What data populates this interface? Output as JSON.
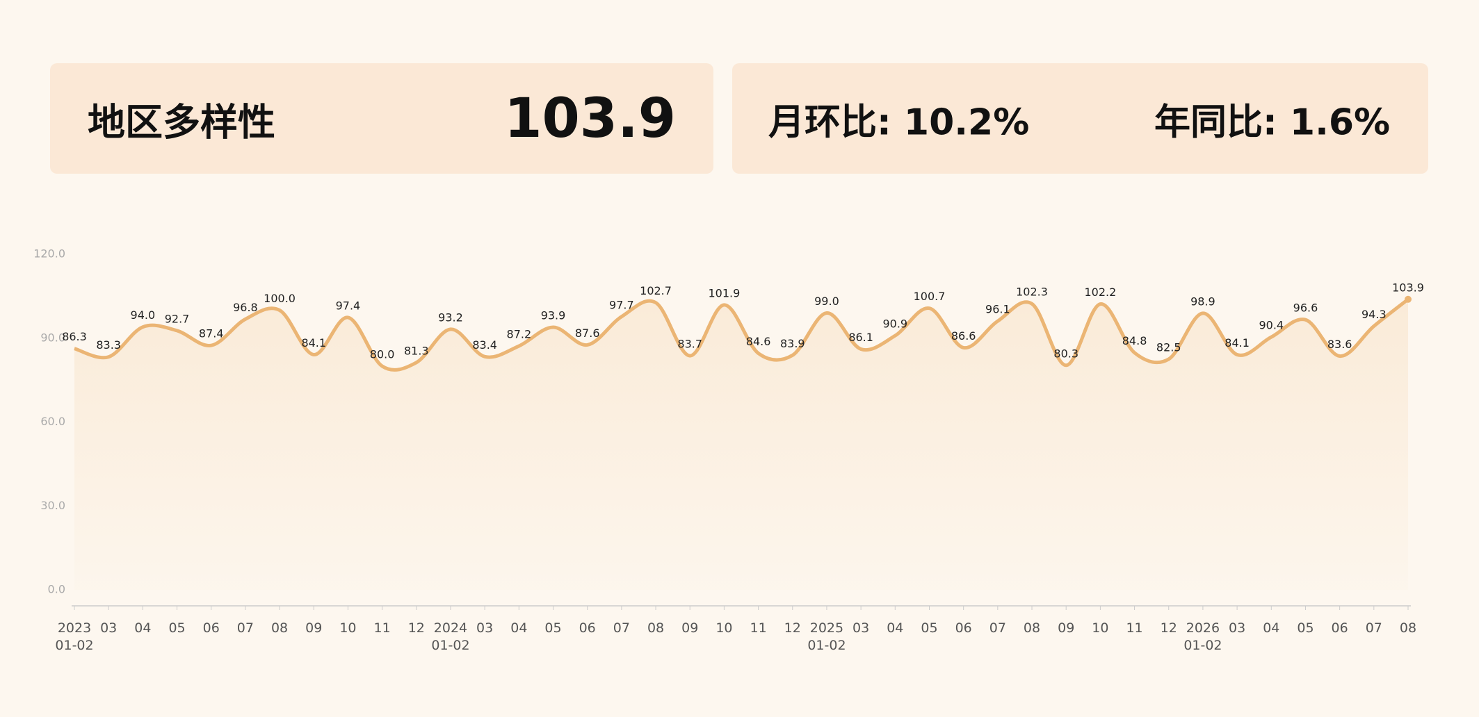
{
  "header": {
    "title": "地区多样性",
    "value": "103.9",
    "mom": "月环比: 10.2%",
    "yoy": "年同比: 1.6%"
  },
  "chart_data": {
    "type": "line",
    "categories": [
      "2023\n01-02",
      "03",
      "04",
      "05",
      "06",
      "07",
      "08",
      "09",
      "10",
      "11",
      "12",
      "2024\n01-02",
      "03",
      "04",
      "05",
      "06",
      "07",
      "08",
      "09",
      "10",
      "11",
      "12",
      "2025\n01-02",
      "03",
      "04",
      "05",
      "06",
      "07",
      "08",
      "09",
      "10",
      "11",
      "12",
      "2026\n01-02",
      "03",
      "04",
      "05",
      "06",
      "07",
      "08"
    ],
    "series": [
      {
        "color": "#ebb574",
        "values": [
          86.3,
          83.3,
          94.0,
          92.7,
          87.4,
          96.8,
          100.0,
          84.1,
          97.4,
          80.0,
          81.3,
          93.2,
          83.4,
          87.2,
          93.9,
          87.6,
          97.7,
          102.7,
          83.7,
          101.9,
          84.6,
          83.9,
          99.0,
          86.1,
          90.9,
          100.7,
          86.6,
          96.1,
          102.3,
          80.3,
          102.2,
          84.8,
          82.5,
          98.9,
          84.1,
          90.4,
          96.6,
          83.6,
          94.3,
          103.9
        ],
        "value_labels": [
          "86.3",
          "83.3",
          "94.0",
          "92.7",
          "87.4",
          "96.8",
          "100.0",
          "84.1",
          "97.4",
          "80.0",
          "81.3",
          "93.2",
          "83.4",
          "87.2",
          "93.9",
          "87.6",
          "97.7",
          "102.7",
          "83.7",
          "101.9",
          "84.6",
          "83.9",
          "99.0",
          "86.1",
          "90.9",
          "100.7",
          "86.6",
          "96.1",
          "102.3",
          "80.3",
          "102.2",
          "84.8",
          "82.5",
          "98.9",
          "84.1",
          "90.4",
          "96.6",
          "83.6",
          "94.3",
          "103.9"
        ]
      }
    ],
    "ylim": [
      0,
      120
    ],
    "yticks": [
      {
        "value": 0,
        "label": "0.0"
      },
      {
        "value": 30,
        "label": "30.0"
      },
      {
        "value": 60,
        "label": "60.0"
      },
      {
        "value": 90,
        "label": "90.0"
      },
      {
        "value": 120,
        "label": "120.0"
      }
    ]
  }
}
